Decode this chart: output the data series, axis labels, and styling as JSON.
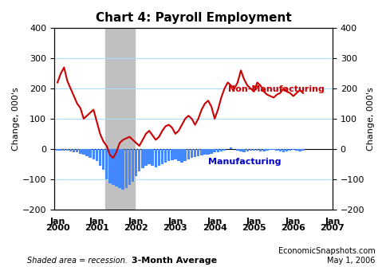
{
  "title": "Chart 4: Payroll Employment",
  "ylabel_left": "Change, 000's",
  "ylabel_right": "Change, 000's",
  "ylim": [
    -200,
    400
  ],
  "yticks": [
    -200,
    -100,
    0,
    100,
    200,
    300,
    400
  ],
  "footnote_left": "Shaded area = recession.",
  "footnote_center": "3-Month Average",
  "footnote_right": "EconomicSnapshots.com\nMay 1, 2006",
  "nonmfg_label": "Non-Manufacturing",
  "mfg_label": "Manufacturing",
  "nonmfg_color": "#cc0000",
  "mfg_color": "#0000cc",
  "mfg_bar_color": "#4488ff",
  "recession_color": "#c0c0c0",
  "grid_color": "#aaddff",
  "nonmfg_data": [
    220,
    250,
    270,
    225,
    200,
    175,
    150,
    135,
    100,
    110,
    120,
    130,
    90,
    50,
    25,
    10,
    -20,
    -30,
    -10,
    20,
    30,
    35,
    40,
    30,
    20,
    10,
    30,
    50,
    60,
    45,
    30,
    40,
    60,
    75,
    80,
    70,
    50,
    60,
    80,
    100,
    110,
    100,
    80,
    100,
    130,
    150,
    160,
    140,
    100,
    130,
    170,
    200,
    220,
    210,
    200,
    220,
    260,
    230,
    210,
    200,
    190,
    220,
    210,
    190,
    180,
    175,
    170,
    180,
    185,
    200,
    190,
    185,
    175,
    185,
    195,
    185
  ],
  "mfg_data": [
    -5,
    -5,
    -5,
    -5,
    -8,
    -10,
    -12,
    -15,
    -20,
    -25,
    -30,
    -35,
    -40,
    -55,
    -70,
    -100,
    -115,
    -120,
    -125,
    -130,
    -135,
    -130,
    -120,
    -110,
    -90,
    -75,
    -65,
    -55,
    -50,
    -55,
    -60,
    -55,
    -50,
    -45,
    -40,
    -38,
    -35,
    -40,
    -45,
    -40,
    -35,
    -30,
    -28,
    -25,
    -22,
    -20,
    -18,
    -15,
    -12,
    -10,
    -8,
    -5,
    0,
    5,
    0,
    -5,
    -8,
    -10,
    -8,
    -5,
    -5,
    -5,
    -8,
    -8,
    -5,
    -2,
    -3,
    -5,
    -8,
    -10,
    -8,
    -5,
    -3,
    -5,
    -8,
    -5
  ],
  "x_tick_positions": [
    0,
    12,
    24,
    36,
    48,
    60,
    72,
    84
  ],
  "x_tick_labels_line1": [
    "Jan",
    "Jan",
    "Jan",
    "Jan",
    "Jan",
    "Jan",
    "Jan",
    "Jan"
  ],
  "x_tick_labels_line2": [
    "2000",
    "2001",
    "2002",
    "2003",
    "2004",
    "2005",
    "2006",
    "2007"
  ]
}
